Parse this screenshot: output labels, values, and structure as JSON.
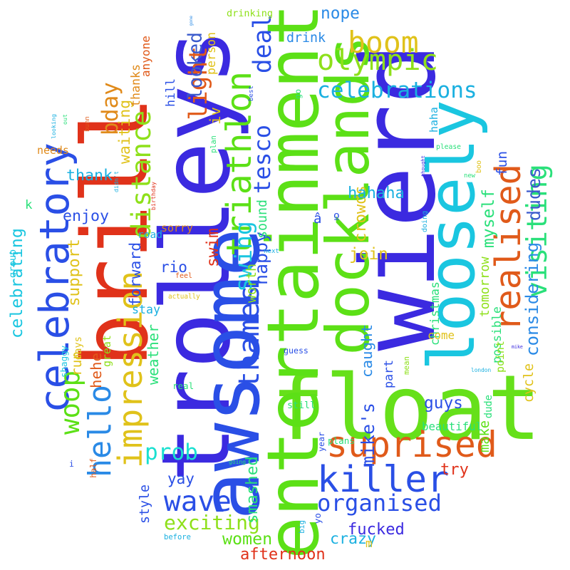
{
  "words": [
    {
      "text": "wierd",
      "color": "#3b2ae0"
    },
    {
      "text": "float",
      "color": "#66e01a"
    },
    {
      "text": "entertainment",
      "color": "#5ce016"
    },
    {
      "text": "trolleys",
      "color": "#3b2ae0"
    },
    {
      "text": "brill",
      "color": "#e0321a"
    },
    {
      "text": "awsome",
      "color": "#2a4fe6"
    },
    {
      "text": "loosely",
      "color": "#1ac6e0"
    },
    {
      "text": "docklands",
      "color": "#5ce016"
    },
    {
      "text": "realised",
      "color": "#e05a1a"
    },
    {
      "text": "celebratory",
      "color": "#2a4fe6"
    },
    {
      "text": "triathlon",
      "color": "#5ce016"
    },
    {
      "text": "suprised",
      "color": "#e05a1a"
    },
    {
      "text": "killer",
      "color": "#2a4fe6"
    },
    {
      "text": "olympic",
      "color": "#8ee01a"
    },
    {
      "text": "visiting",
      "color": "#2ae07a"
    },
    {
      "text": "distance",
      "color": "#8ee01a"
    },
    {
      "text": "impression",
      "color": "#e0c21a"
    },
    {
      "text": "wave",
      "color": "#2a4fe6"
    },
    {
      "text": "hello",
      "color": "#2a8ae6"
    },
    {
      "text": "thames",
      "color": "#2a4fe6"
    },
    {
      "text": "swing",
      "color": "#1ac6e0"
    },
    {
      "text": "woop",
      "color": "#5ce016"
    },
    {
      "text": "celebrations",
      "color": "#1ab0e0"
    },
    {
      "text": "deal",
      "color": "#2a4fe6"
    },
    {
      "text": "boom",
      "color": "#e0c21a"
    },
    {
      "text": "exciting",
      "color": "#8ee01a"
    },
    {
      "text": "organised",
      "color": "#2a4fe6"
    },
    {
      "text": "prob",
      "color": "#1ae0d0"
    },
    {
      "text": "tesco",
      "color": "#2a4fe6"
    },
    {
      "text": "light",
      "color": "#e05a1a"
    },
    {
      "text": "bday",
      "color": "#e08a1a"
    },
    {
      "text": "crowds",
      "color": "#e0c21a"
    },
    {
      "text": "swim",
      "color": "#e0321a"
    },
    {
      "text": "looked",
      "color": "#3a5acc"
    },
    {
      "text": "celebrating",
      "color": "#1ac6e0"
    },
    {
      "text": "mike's",
      "color": "#2a4fe6"
    },
    {
      "text": "caught",
      "color": "#2a8ae6"
    },
    {
      "text": "happy",
      "color": "#2a4fe6"
    },
    {
      "text": "considering",
      "color": "#2a8ae6"
    },
    {
      "text": "afternoon",
      "color": "#e0321a"
    },
    {
      "text": "fucked",
      "color": "#3b2ae0"
    },
    {
      "text": "women",
      "color": "#5ce016"
    },
    {
      "text": "crazy",
      "color": "#1ab0e0"
    },
    {
      "text": "dudes",
      "color": "#3a5acc"
    },
    {
      "text": "hahaha",
      "color": "#1ab0e0"
    },
    {
      "text": "smashed",
      "color": "#2ae07a"
    },
    {
      "text": "support",
      "color": "#e0c21a"
    },
    {
      "text": "enjoy",
      "color": "#2a4fe6"
    },
    {
      "text": "cycle",
      "color": "#e0c21a"
    },
    {
      "text": "myself",
      "color": "#2ae07a"
    },
    {
      "text": "weather",
      "color": "#2ae07a"
    },
    {
      "text": "waiting",
      "color": "#e0c21a"
    },
    {
      "text": "thank",
      "color": "#1ab0e0"
    },
    {
      "text": "nope",
      "color": "#2a8ae6"
    },
    {
      "text": "drink",
      "color": "#2a8ae6"
    },
    {
      "text": "join",
      "color": "#e0c21a"
    },
    {
      "text": "guys",
      "color": "#2a4fe6"
    },
    {
      "text": "yay",
      "color": "#2a4fe6"
    },
    {
      "text": "rio",
      "color": "#2a4fe6"
    },
    {
      "text": "forward",
      "color": "#2a4fe6"
    },
    {
      "text": "style",
      "color": "#2a4fe6"
    },
    {
      "text": "hehe",
      "color": "#e05a1a"
    },
    {
      "text": "run",
      "color": "#e0c21a"
    },
    {
      "text": "fun",
      "color": "#2a4fe6"
    },
    {
      "text": "possible",
      "color": "#2ae07a"
    },
    {
      "text": "worth",
      "color": "#8ee01a"
    },
    {
      "text": "sound",
      "color": "#2ae07a"
    },
    {
      "text": "part",
      "color": "#2a4fe6"
    },
    {
      "text": "try",
      "color": "#e0321a"
    },
    {
      "text": "make",
      "color": "#5ce016"
    },
    {
      "text": "hill",
      "color": "#2a4fe6"
    },
    {
      "text": "iv",
      "color": "#e0c21a"
    },
    {
      "text": "k",
      "color": "#2ae07a"
    },
    {
      "text": "âº",
      "color": "#2a4fe6"
    },
    {
      "text": "christmas",
      "color": "#2ae07a"
    },
    {
      "text": "tomorrow",
      "color": "#8ee01a"
    },
    {
      "text": "beautiful",
      "color": "#2ae07a"
    },
    {
      "text": "drinking",
      "color": "#8ee01a"
    },
    {
      "text": "person",
      "color": "#e0c21a"
    },
    {
      "text": "thanks",
      "color": "#e08a1a"
    },
    {
      "text": "anyone",
      "color": "#e05a1a"
    },
    {
      "text": "needs",
      "color": "#e08a1a"
    },
    {
      "text": "sorry",
      "color": "#e08a1a"
    },
    {
      "text": "road",
      "color": "#1ab0e0"
    },
    {
      "text": "stay",
      "color": "#1ab0e0"
    },
    {
      "text": "group",
      "color": "#1ac6e0"
    },
    {
      "text": "shaggy",
      "color": "#1ac6e0"
    },
    {
      "text": "days",
      "color": "#e0c21a"
    },
    {
      "text": "great",
      "color": "#8ee01a"
    },
    {
      "text": "real",
      "color": "#2ae07a"
    },
    {
      "text": "feel",
      "color": "#e05a1a"
    },
    {
      "text": "actually",
      "color": "#e0c21a"
    },
    {
      "text": "still",
      "color": "#2ae07a"
    },
    {
      "text": "come",
      "color": "#e0c21a"
    },
    {
      "text": "haha",
      "color": "#1ab0e0"
    },
    {
      "text": "plans",
      "color": "#2ae07a"
    },
    {
      "text": "point",
      "color": "#8ee01a"
    },
    {
      "text": "dude",
      "color": "#2ae07a"
    },
    {
      "text": "guess",
      "color": "#2a4fe6"
    },
    {
      "text": "please",
      "color": "#2ae07a"
    },
    {
      "text": "london",
      "color": "#1ab0e0"
    },
    {
      "text": "mean",
      "color": "#8ee01a"
    },
    {
      "text": "year",
      "color": "#2a4fe6"
    },
    {
      "text": "half",
      "color": "#e05a1a"
    },
    {
      "text": "yo",
      "color": "#2a4fe6"
    },
    {
      "text": "big",
      "color": "#1ab0e0"
    },
    {
      "text": "before",
      "color": "#1ab0e0"
    },
    {
      "text": "going",
      "color": "#2ae07a"
    },
    {
      "text": "next",
      "color": "#1ab0e0"
    },
    {
      "text": "doing",
      "color": "#1ab0e0"
    },
    {
      "text": "new",
      "color": "#2ae07a"
    },
    {
      "text": "thought",
      "color": "#3b2ae0"
    },
    {
      "text": "birthday",
      "color": "#e0321a"
    },
    {
      "text": "didn't",
      "color": "#1ab0e0"
    },
    {
      "text": "looking",
      "color": "#1ab0e0"
    },
    {
      "text": "bunn",
      "color": "#e05a1a"
    },
    {
      "text": "plan",
      "color": "#2ae07a"
    },
    {
      "text": "best",
      "color": "#2a4fe6"
    },
    {
      "text": "go",
      "color": "#2ae07a"
    },
    {
      "text": "m",
      "color": "#e0c21a"
    },
    {
      "text": "i",
      "color": "#2a4fe6"
    },
    {
      "text": "mike",
      "color": "#3b2ae0"
    },
    {
      "text": "out",
      "color": "#2ae07a"
    },
    {
      "text": "gone",
      "color": "#2a8ae6"
    },
    {
      "text": "boo",
      "color": "#e0c21a"
    }
  ]
}
